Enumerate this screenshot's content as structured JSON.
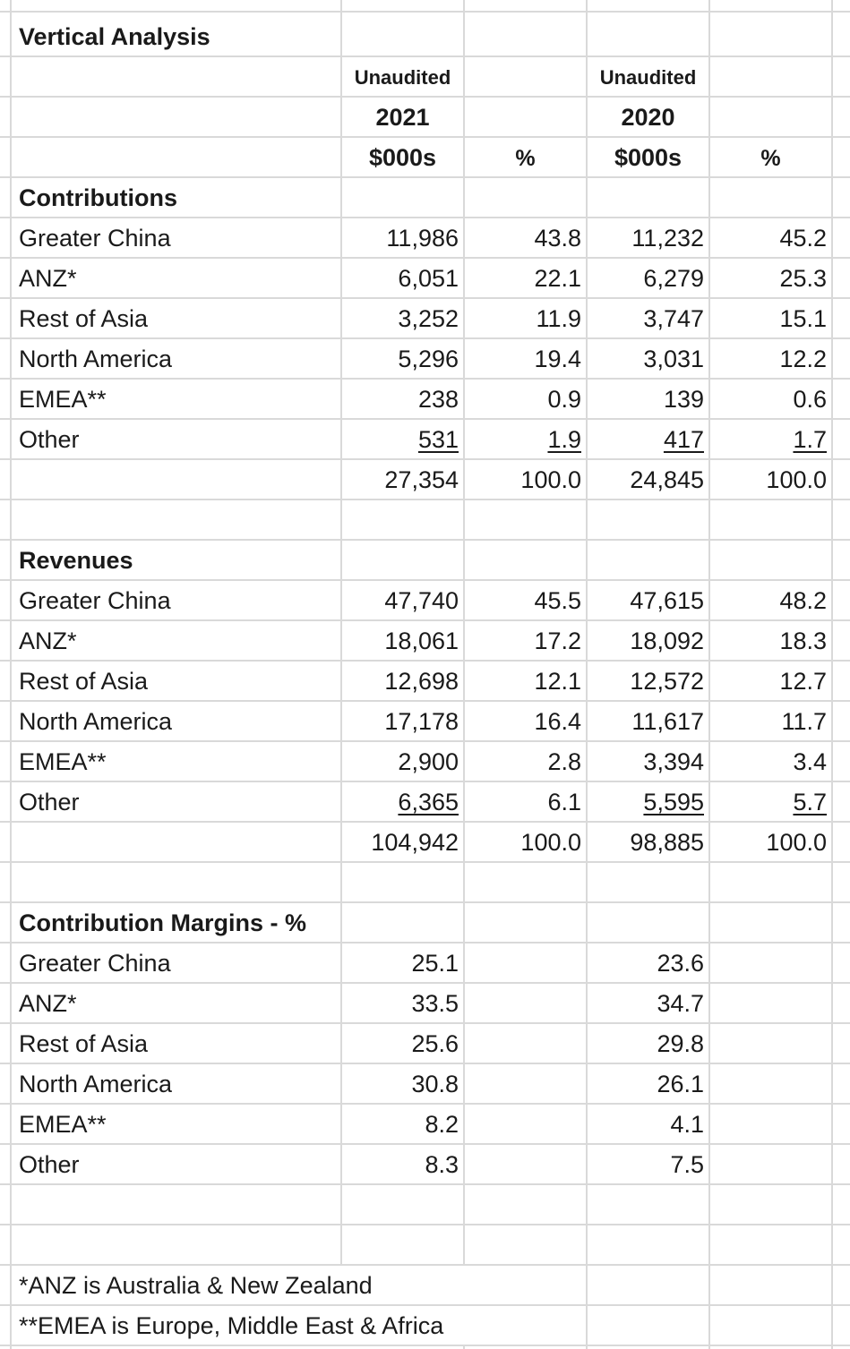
{
  "title": "Vertical Analysis",
  "header": {
    "col_2021": {
      "status": "Unaudited",
      "year": "2021",
      "unit": "$000s",
      "pct": "%"
    },
    "col_2020": {
      "status": "Unaudited",
      "year": "2020",
      "unit": "$000s",
      "pct": "%"
    }
  },
  "sections": {
    "contributions": {
      "title": "Contributions",
      "rows": [
        {
          "label": "Greater China",
          "v2021": "11,986",
          "p2021": "43.8",
          "v2020": "11,232",
          "p2020": "45.2"
        },
        {
          "label": "ANZ*",
          "v2021": "6,051",
          "p2021": "22.1",
          "v2020": "6,279",
          "p2020": "25.3"
        },
        {
          "label": "Rest of Asia",
          "v2021": "3,252",
          "p2021": "11.9",
          "v2020": "3,747",
          "p2020": "15.1"
        },
        {
          "label": "North America",
          "v2021": "5,296",
          "p2021": "19.4",
          "v2020": "3,031",
          "p2020": "12.2"
        },
        {
          "label": "EMEA**",
          "v2021": "238",
          "p2021": "0.9",
          "v2020": "139",
          "p2020": "0.6"
        },
        {
          "label": "Other",
          "v2021": "531",
          "p2021": "1.9",
          "v2020": "417",
          "p2020": "1.7"
        }
      ],
      "total": {
        "v2021": "27,354",
        "p2021": "100.0",
        "v2020": "24,845",
        "p2020": "100.0"
      }
    },
    "revenues": {
      "title": "Revenues",
      "rows": [
        {
          "label": "Greater China",
          "v2021": "47,740",
          "p2021": "45.5",
          "v2020": "47,615",
          "p2020": "48.2"
        },
        {
          "label": "ANZ*",
          "v2021": "18,061",
          "p2021": "17.2",
          "v2020": "18,092",
          "p2020": "18.3"
        },
        {
          "label": "Rest of Asia",
          "v2021": "12,698",
          "p2021": "12.1",
          "v2020": "12,572",
          "p2020": "12.7"
        },
        {
          "label": "North America",
          "v2021": "17,178",
          "p2021": "16.4",
          "v2020": "11,617",
          "p2020": "11.7"
        },
        {
          "label": "EMEA**",
          "v2021": "2,900",
          "p2021": "2.8",
          "v2020": "3,394",
          "p2020": "3.4"
        },
        {
          "label": "Other",
          "v2021": "6,365",
          "p2021": "6.1",
          "v2020": "5,595",
          "p2020": "5.7"
        }
      ],
      "total": {
        "v2021": "104,942",
        "p2021": "100.0",
        "v2020": "98,885",
        "p2020": "100.0"
      }
    },
    "margins": {
      "title": "Contribution Margins - %",
      "rows": [
        {
          "label": "Greater China",
          "v2021": "25.1",
          "v2020": "23.6"
        },
        {
          "label": "ANZ*",
          "v2021": "33.5",
          "v2020": "34.7"
        },
        {
          "label": "Rest of Asia",
          "v2021": "25.6",
          "v2020": "29.8"
        },
        {
          "label": "North America",
          "v2021": "30.8",
          "v2020": "26.1"
        },
        {
          "label": "EMEA**",
          "v2021": "8.2",
          "v2020": "4.1"
        },
        {
          "label": "Other",
          "v2021": "8.3",
          "v2020": "7.5"
        }
      ]
    }
  },
  "footnotes": [
    "*ANZ is Australia & New Zealand",
    "**EMEA is Europe, Middle East & Africa"
  ],
  "colors": {
    "gridline": "#d9d9d9",
    "text": "#1a1a1a"
  }
}
